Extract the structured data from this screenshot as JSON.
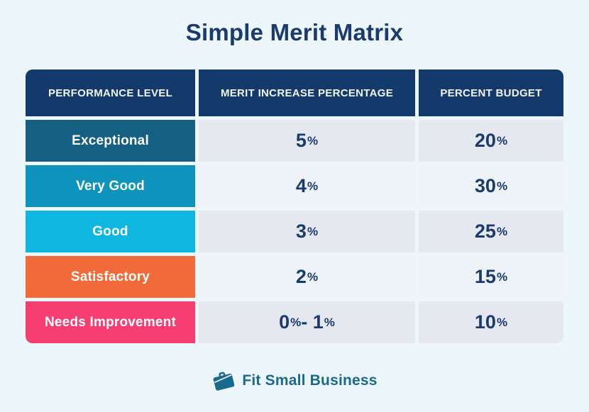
{
  "page": {
    "title": "Simple Merit Matrix",
    "background": "#edf6fa"
  },
  "table": {
    "headers": [
      "PERFORMANCE LEVEL",
      "MERIT INCREASE PERCENTAGE",
      "PERCENT BUDGET"
    ],
    "rows": [
      {
        "level": "Exceptional",
        "merit": "5%",
        "budget": "20%",
        "color": "#136083"
      },
      {
        "level": "Very Good",
        "merit": "4%",
        "budget": "30%",
        "color": "#0d93bc"
      },
      {
        "level": "Good",
        "merit": "3%",
        "budget": "25%",
        "color": "#0fb6e0"
      },
      {
        "level": "Satisfactory",
        "merit": "2%",
        "budget": "15%",
        "color": "#f06a3a"
      },
      {
        "level": "Needs Improvement",
        "merit": "0% - 1%",
        "budget": "10%",
        "color": "#f63e70"
      }
    ]
  },
  "footer": {
    "logo_text": "Fit Small Business",
    "logo_icon": "briefcase-icon",
    "logo_color": "#19698c"
  },
  "colors": {
    "header_bg": "#143a6c",
    "title_color": "#1a3b6d",
    "value_color": "#1a3b6d",
    "cell_bg_odd": "#e5e8ef",
    "cell_bg_even": "#edf3f7"
  }
}
